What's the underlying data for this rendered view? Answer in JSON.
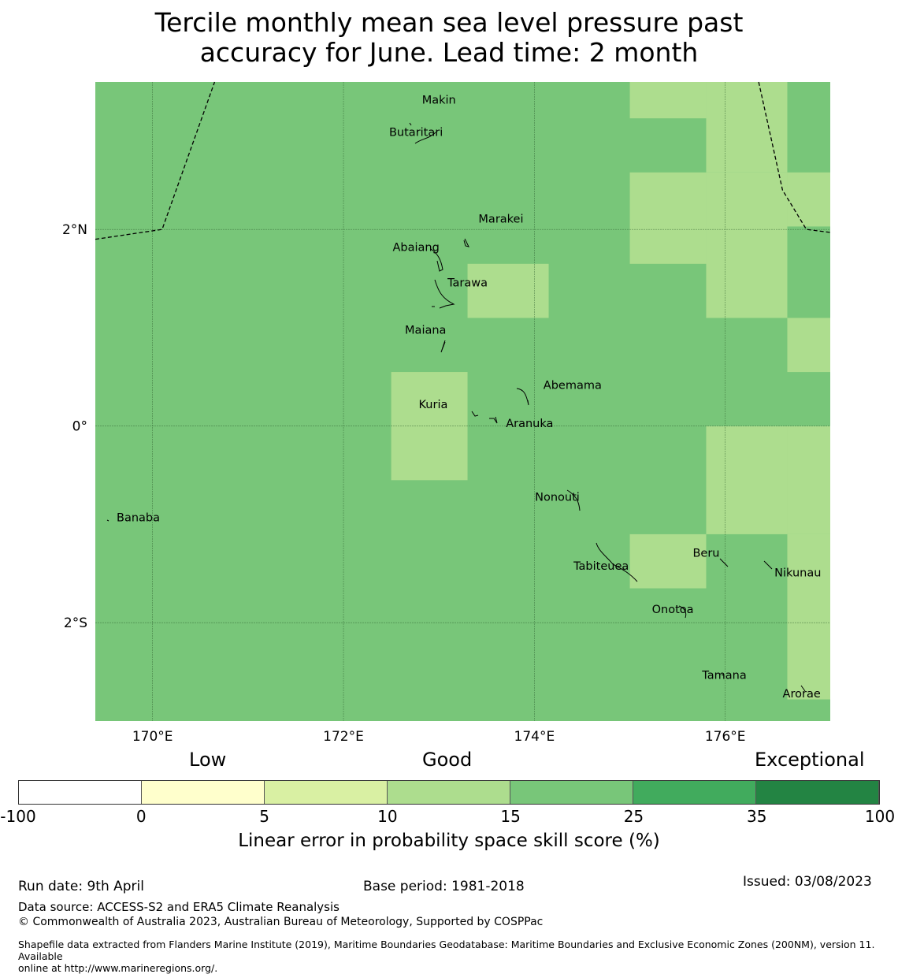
{
  "title_line1": "Tercile monthly mean sea level pressure past",
  "title_line2": "accuracy for June. Lead time: 2 month",
  "map": {
    "lon_range": [
      169.4,
      177.1
    ],
    "lat_range": [
      -3.0,
      3.5
    ],
    "lon_ticks": [
      {
        "value": 170,
        "label": "170°E"
      },
      {
        "value": 172,
        "label": "172°E"
      },
      {
        "value": 174,
        "label": "174°E"
      },
      {
        "value": 176,
        "label": "176°E"
      }
    ],
    "lat_ticks": [
      {
        "value": 2,
        "label": "2°N"
      },
      {
        "value": 0,
        "label": "0°"
      },
      {
        "value": -2,
        "label": "2°S"
      }
    ],
    "background_color": "#78c679",
    "light_color": "#addd8e",
    "light_cells": [
      {
        "lon": [
          175.0,
          175.8
        ],
        "lat": [
          3.13,
          3.5
        ]
      },
      {
        "lon": [
          175.8,
          176.65
        ],
        "lat": [
          2.58,
          3.5
        ]
      },
      {
        "lon": [
          175.0,
          175.8
        ],
        "lat": [
          1.65,
          2.58
        ]
      },
      {
        "lon": [
          175.8,
          176.65
        ],
        "lat": [
          1.1,
          2.58
        ]
      },
      {
        "lon": [
          176.65,
          177.1
        ],
        "lat": [
          2.03,
          2.58
        ]
      },
      {
        "lon": [
          176.65,
          177.1
        ],
        "lat": [
          0.55,
          1.1
        ]
      },
      {
        "lon": [
          173.3,
          174.15
        ],
        "lat": [
          1.1,
          1.65
        ]
      },
      {
        "lon": [
          172.5,
          173.3
        ],
        "lat": [
          -0.55,
          0.55
        ]
      },
      {
        "lon": [
          175.8,
          176.65
        ],
        "lat": [
          -1.1,
          0.0
        ]
      },
      {
        "lon": [
          176.65,
          177.1
        ],
        "lat": [
          -1.1,
          0.0
        ]
      },
      {
        "lon": [
          175.0,
          175.8
        ],
        "lat": [
          -1.65,
          -1.1
        ]
      },
      {
        "lon": [
          176.65,
          177.1
        ],
        "lat": [
          -2.78,
          -1.1
        ]
      }
    ],
    "boundary_west": [
      [
        169.4,
        1.9
      ],
      [
        170.1,
        2.0
      ],
      [
        170.65,
        3.5
      ]
    ],
    "boundary_east": [
      [
        176.35,
        3.5
      ],
      [
        176.6,
        2.4
      ],
      [
        176.85,
        2.0
      ],
      [
        177.1,
        1.97
      ]
    ],
    "islands": [
      {
        "name": "Makin",
        "label_lon": 173.0,
        "label_lat": 3.32
      },
      {
        "name": "Butaritari",
        "label_lon": 172.76,
        "label_lat": 2.99
      },
      {
        "name": "Marakei",
        "label_lon": 173.65,
        "label_lat": 2.11
      },
      {
        "name": "Abaiang",
        "label_lon": 172.76,
        "label_lat": 1.82
      },
      {
        "name": "Tarawa",
        "label_lon": 173.3,
        "label_lat": 1.46
      },
      {
        "name": "Maiana",
        "label_lon": 172.86,
        "label_lat": 0.98
      },
      {
        "name": "Abemama",
        "label_lon": 174.4,
        "label_lat": 0.42
      },
      {
        "name": "Kuria",
        "label_lon": 172.94,
        "label_lat": 0.22
      },
      {
        "name": "Aranuka",
        "label_lon": 173.95,
        "label_lat": 0.03
      },
      {
        "name": "Nonouti",
        "label_lon": 174.24,
        "label_lat": -0.72
      },
      {
        "name": "Banaba",
        "label_lon": 169.85,
        "label_lat": -0.93
      },
      {
        "name": "Tabiteuea",
        "label_lon": 174.7,
        "label_lat": -1.42
      },
      {
        "name": "Beru",
        "label_lon": 175.8,
        "label_lat": -1.29
      },
      {
        "name": "Nikunau",
        "label_lon": 176.76,
        "label_lat": -1.49
      },
      {
        "name": "Onotoa",
        "label_lon": 175.45,
        "label_lat": -1.86
      },
      {
        "name": "Tamana",
        "label_lon": 175.99,
        "label_lat": -2.53
      },
      {
        "name": "Arorae",
        "label_lon": 176.8,
        "label_lat": -2.72
      }
    ]
  },
  "colorbar": {
    "category_low": "Low",
    "category_good": "Good",
    "category_exceptional": "Exceptional",
    "bins": [
      {
        "from": "-100",
        "to": "0",
        "color": "#ffffff"
      },
      {
        "from": "0",
        "to": "5",
        "color": "#ffffcc"
      },
      {
        "from": "5",
        "to": "10",
        "color": "#d9f0a3"
      },
      {
        "from": "10",
        "to": "15",
        "color": "#addd8e"
      },
      {
        "from": "15",
        "to": "25",
        "color": "#78c679"
      },
      {
        "from": "25",
        "to": "35",
        "color": "#41ab5d"
      },
      {
        "from": "35",
        "to": "100",
        "color": "#238443"
      }
    ],
    "tick_labels": [
      "-100",
      "0",
      "5",
      "10",
      "15",
      "25",
      "35",
      "100"
    ],
    "label": "Linear error in probability space skill score (%)"
  },
  "footer": {
    "run_date": "Run date: 9th April",
    "base_period": "Base period: 1981-2018",
    "issued": "Issued: 03/08/2023",
    "data_source": "Data source: ACCESS-S2 and ERA5 Climate Reanalysis",
    "copyright": "© Commonwealth of Australia 2023, Australian Bureau of Meteorology, Supported by COSPPac",
    "shapefile_line1": "Shapefile data extracted from Flanders Marine Institute (2019), Maritime Boundaries Geodatabase: Maritime Boundaries and Exclusive Economic Zones (200NM), version 11. Available",
    "shapefile_line2": "online at http://www.marineregions.org/."
  }
}
